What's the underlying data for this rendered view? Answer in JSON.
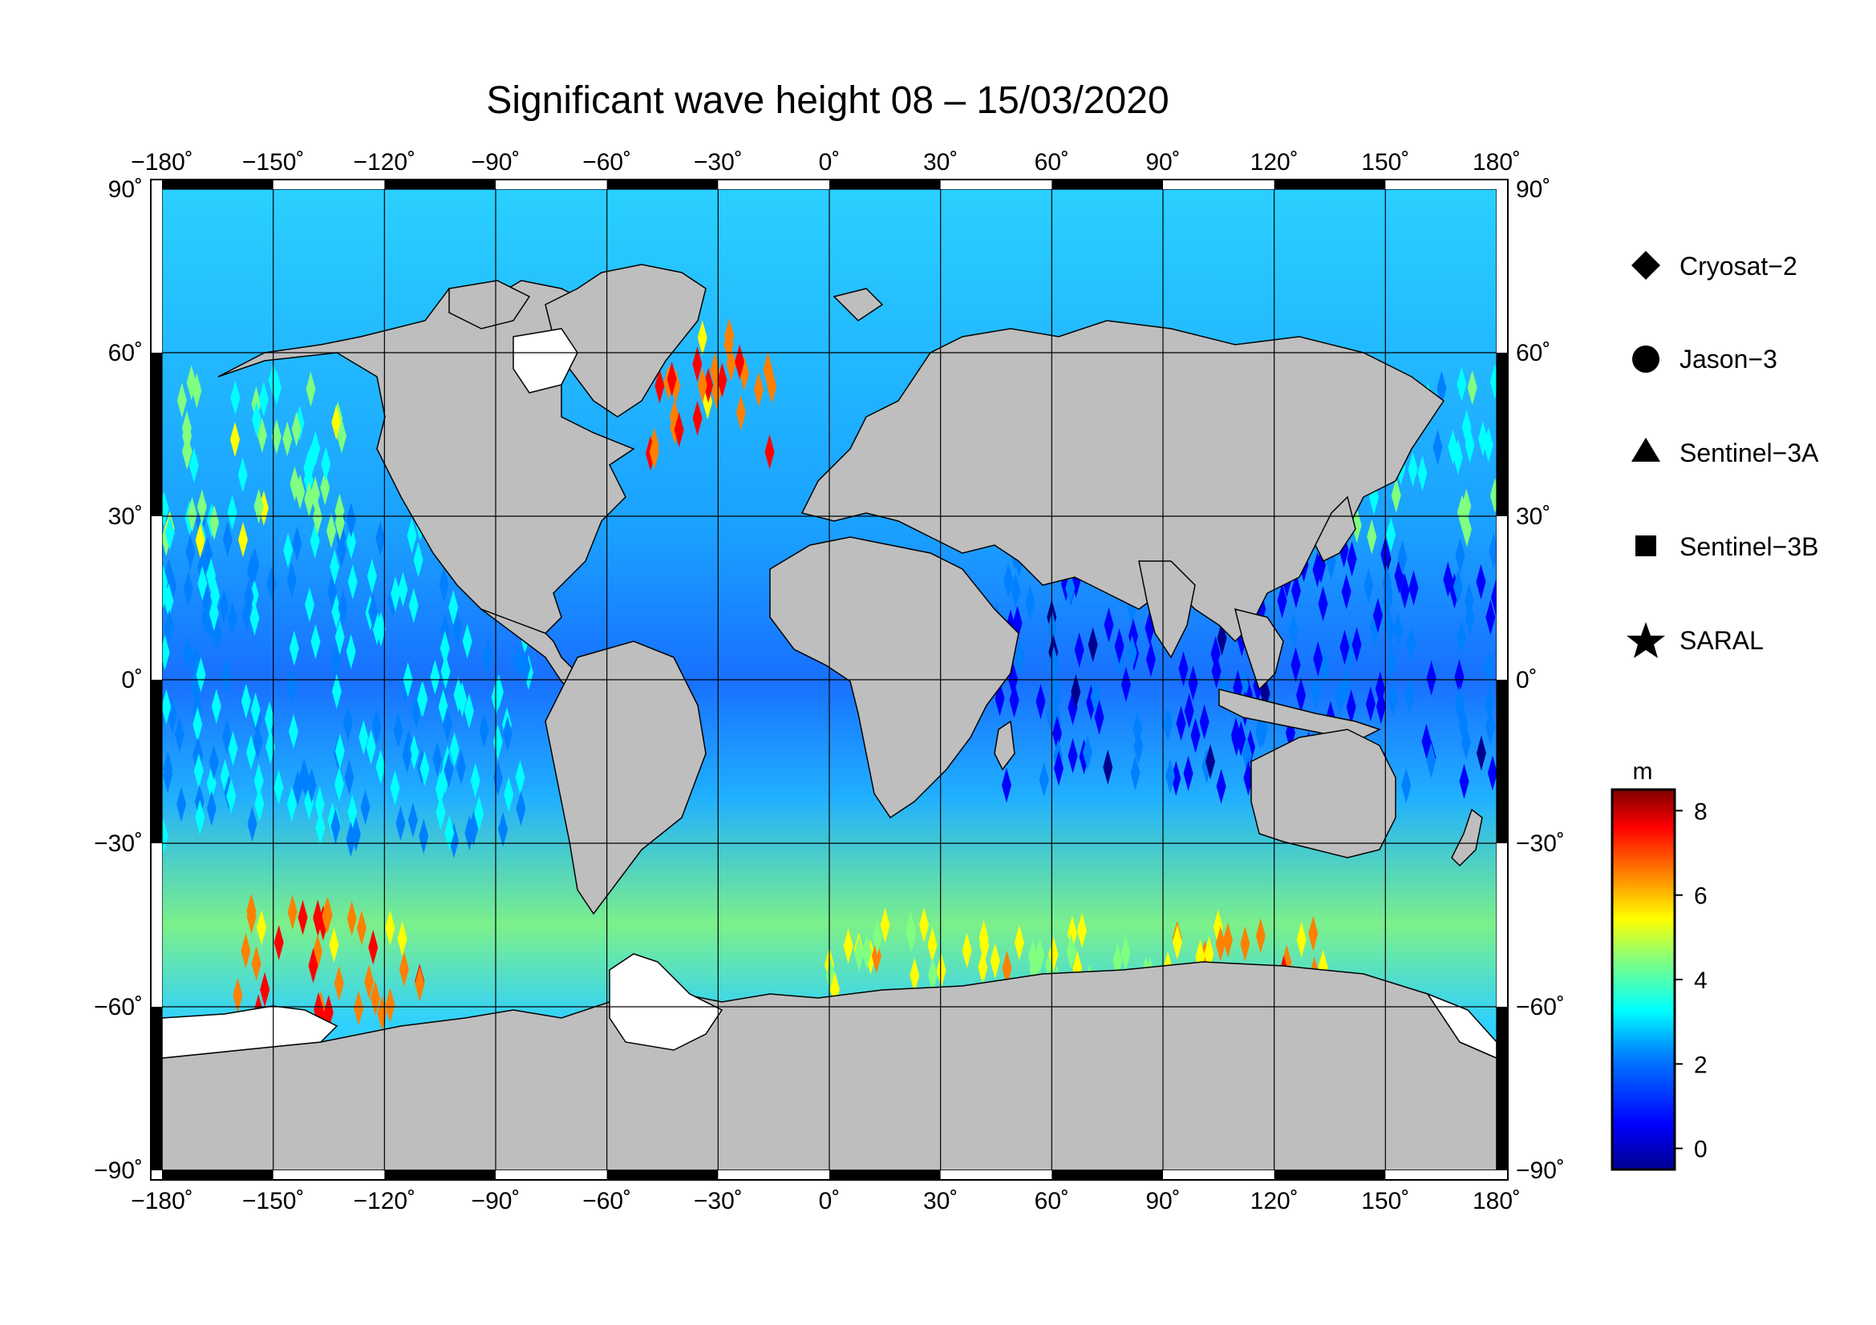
{
  "title": "Significant wave height 08 – 15/03/2020",
  "map": {
    "projection": "equirectangular",
    "lon_range": [
      -180,
      180
    ],
    "lat_range": [
      -90,
      90
    ],
    "lon_ticks": [
      -180,
      -150,
      -120,
      -90,
      -60,
      -30,
      0,
      30,
      60,
      90,
      120,
      150,
      180
    ],
    "lat_ticks": [
      -90,
      -60,
      -30,
      0,
      30,
      60,
      90
    ],
    "lon_tick_labels": [
      "−180˚",
      "−150˚",
      "−120˚",
      "−90˚",
      "−60˚",
      "−30˚",
      "0˚",
      "30˚",
      "60˚",
      "90˚",
      "120˚",
      "150˚",
      "180˚"
    ],
    "lat_tick_labels": [
      "−90˚",
      "−60˚",
      "−30˚",
      "0˚",
      "30˚",
      "60˚",
      "90˚"
    ],
    "grid": true,
    "land_color": "#bebebe",
    "ice_color": "#ffffff"
  },
  "legend": {
    "placement": "right",
    "items": [
      {
        "label": "Cryosat−2",
        "symbol": "diamond"
      },
      {
        "label": "Jason−3",
        "symbol": "circle"
      },
      {
        "label": "Sentinel−3A",
        "symbol": "triangle"
      },
      {
        "label": "Sentinel−3B",
        "symbol": "square"
      },
      {
        "label": "SARAL",
        "symbol": "star"
      }
    ]
  },
  "colorbar": {
    "unit": "m",
    "min": -0.5,
    "max": 8.5,
    "ticks": [
      0,
      2,
      4,
      6,
      8
    ],
    "tick_labels": [
      "0",
      "2",
      "4",
      "6",
      "8"
    ],
    "colormap": "jet",
    "colors": [
      "#00008f",
      "#0000ff",
      "#0080ff",
      "#00ffff",
      "#80ff80",
      "#ffff00",
      "#ff8000",
      "#ff0000",
      "#800000"
    ]
  },
  "chart_data": {
    "type": "heatmap",
    "variable": "significant wave height",
    "unit": "m",
    "x_range": [
      -180,
      180
    ],
    "y_range": [
      -90,
      90
    ],
    "regions": [
      {
        "lat": [
          40,
          65
        ],
        "lon": [
          -50,
          -15
        ],
        "value": 6.5
      },
      {
        "lat": [
          -63,
          -42
        ],
        "lon": [
          -160,
          -110
        ],
        "value": 6.5
      },
      {
        "lat": [
          -60,
          -45
        ],
        "lon": [
          90,
          135
        ],
        "value": 6.0
      },
      {
        "lat": [
          -60,
          -45
        ],
        "lon": [
          0,
          90
        ],
        "value": 4.8
      },
      {
        "lat": [
          -30,
          30
        ],
        "lon": [
          -180,
          -80
        ],
        "value": 2.3
      },
      {
        "lat": [
          -20,
          25
        ],
        "lon": [
          45,
          180
        ],
        "value": 1.0
      },
      {
        "lat": [
          25,
          55
        ],
        "lon": [
          140,
          180
        ],
        "value": 3.2
      },
      {
        "lat": [
          25,
          55
        ],
        "lon": [
          -180,
          -130
        ],
        "value": 3.8
      }
    ]
  }
}
